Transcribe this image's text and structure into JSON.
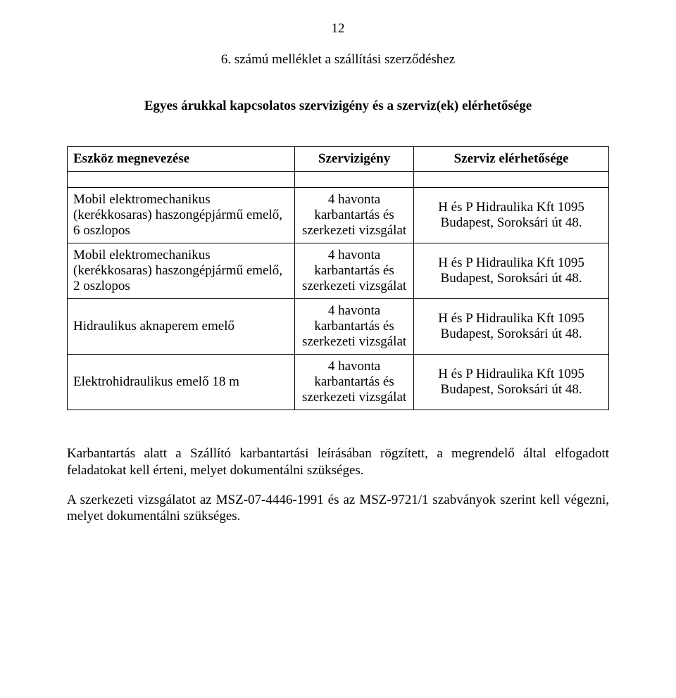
{
  "page_number": "12",
  "title": "6. számú melléklet a szállítási szerződéshez",
  "subtitle": "Egyes árukkal kapcsolatos szervizigény és a szerviz(ek) elérhetősége",
  "table": {
    "headers": {
      "col1": "Eszköz megnevezése",
      "col2": "Szervizigény",
      "col3": "Szerviz elérhetősége"
    },
    "rows": [
      {
        "col1": "Mobil elektromechanikus (kerékkosaras) haszongépjármű emelő, 6 oszlopos",
        "col2": "4 havonta karbantartás és szerkezeti vizsgálat",
        "col3": "H és P Hidraulika Kft 1095 Budapest, Soroksári út 48."
      },
      {
        "col1": "Mobil elektromechanikus (kerékkosaras) haszongépjármű emelő, 2 oszlopos",
        "col2": "4 havonta karbantartás és szerkezeti vizsgálat",
        "col3": "H és P Hidraulika Kft 1095 Budapest, Soroksári út 48."
      },
      {
        "col1": "Hidraulikus aknaperem emelő",
        "col2": "4 havonta karbantartás és szerkezeti vizsgálat",
        "col3": "H és P Hidraulika Kft 1095 Budapest, Soroksári út 48."
      },
      {
        "col1": "Elektrohidraulikus emelő 18 m",
        "col2": "4 havonta karbantartás és szerkezeti vizsgálat",
        "col3": "H és P Hidraulika Kft 1095 Budapest, Soroksári út 48."
      }
    ]
  },
  "paragraphs": {
    "p1": "Karbantartás alatt a Szállító karbantartási leírásában rögzített, a megrendelő által elfogadott feladatokat kell érteni, melyet dokumentálni szükséges.",
    "p2": "A szerkezeti vizsgálatot az MSZ-07-4446-1991 és az MSZ-9721/1 szabványok szerint kell végezni, melyet dokumentálni szükséges."
  }
}
